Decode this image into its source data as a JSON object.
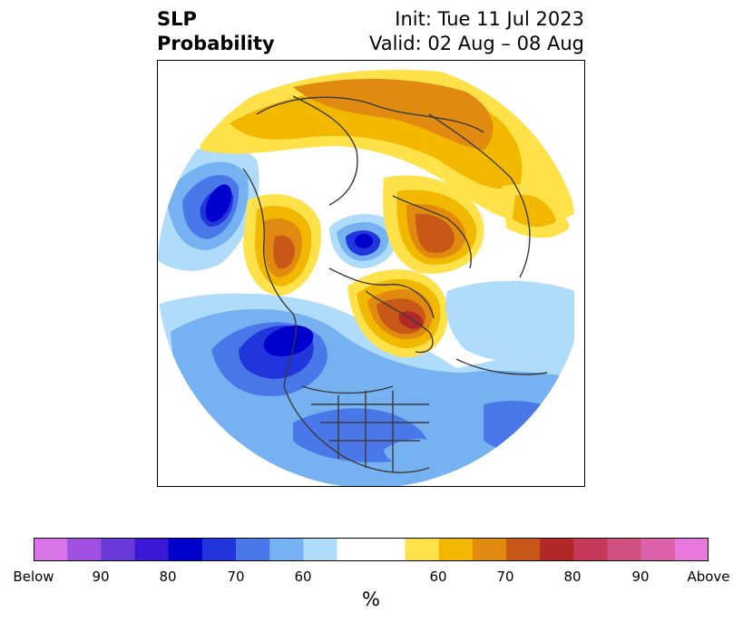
{
  "title": {
    "variable_line1": "SLP",
    "variable_line2": "Probability",
    "init": "Init: Tue 11 Jul 2023",
    "valid": "Valid: 02 Aug – 08 Aug"
  },
  "map": {
    "projection": "polar stereographic (North Pole)",
    "field": "sea level pressure tercile probability",
    "colors": {
      "land_lines": "#3a3a3a",
      "background": "#ffffff"
    }
  },
  "colorbar": {
    "unit": "%",
    "bins": [
      {
        "label": "below_100",
        "color": "#d874e8"
      },
      {
        "label": "below_90",
        "color": "#a050e0"
      },
      {
        "label": "below_85",
        "color": "#6a3ad8"
      },
      {
        "label": "below_80",
        "color": "#3a18d6"
      },
      {
        "label": "below_75",
        "color": "#0000cc"
      },
      {
        "label": "below_70",
        "color": "#2035dc"
      },
      {
        "label": "below_65",
        "color": "#4a78e8"
      },
      {
        "label": "below_60",
        "color": "#76b2f2"
      },
      {
        "label": "below_55",
        "color": "#aedcfa"
      },
      {
        "label": "neutral",
        "color": "#ffffff"
      },
      {
        "label": "above_55",
        "color": "#ffe14a"
      },
      {
        "label": "above_60",
        "color": "#f2b800"
      },
      {
        "label": "above_65",
        "color": "#e08a10"
      },
      {
        "label": "above_70",
        "color": "#c85818"
      },
      {
        "label": "above_75",
        "color": "#b02828"
      },
      {
        "label": "above_80",
        "color": "#c43a58"
      },
      {
        "label": "above_85",
        "color": "#d05082"
      },
      {
        "label": "above_90",
        "color": "#dc60aa"
      },
      {
        "label": "above_100",
        "color": "#e878dc"
      }
    ],
    "tick_labels": [
      "Below",
      "90",
      "80",
      "70",
      "60",
      "60",
      "70",
      "80",
      "90",
      "Above"
    ]
  }
}
